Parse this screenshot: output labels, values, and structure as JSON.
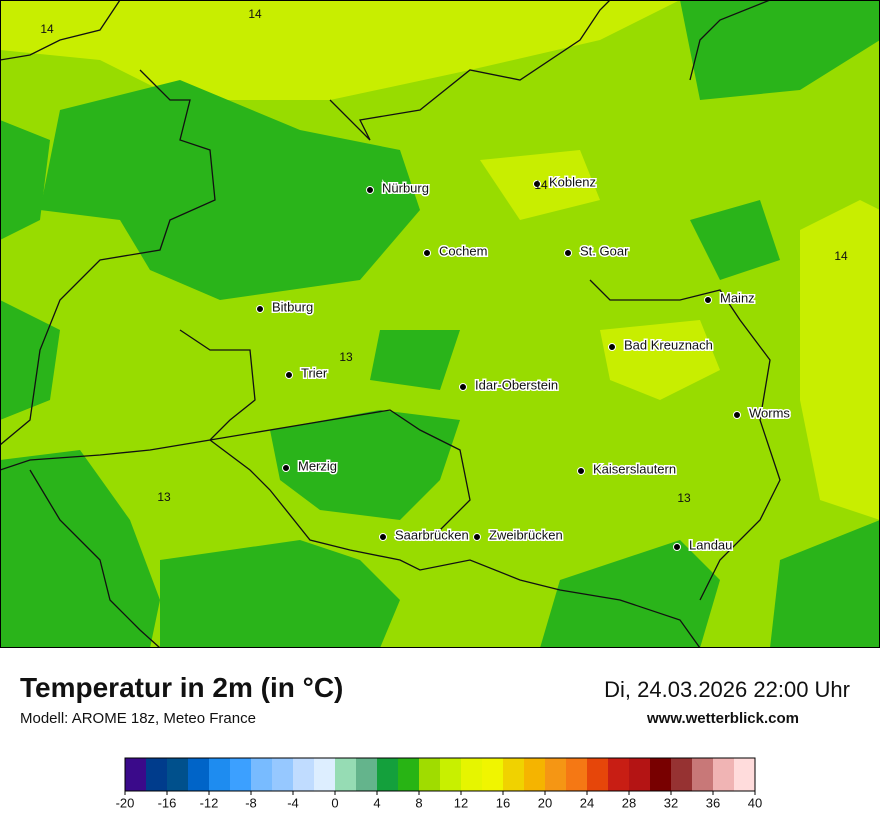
{
  "map": {
    "contour_labels": [
      "14",
      "14",
      "14",
      "14",
      "13",
      "13",
      "13"
    ],
    "cities": [
      "Nürburg",
      "Koblenz",
      "Cochem",
      "St. Goar",
      "Mainz",
      "Bitburg",
      "Bad Kreuznach",
      "Trier",
      "Idar-Oberstein",
      "Worms",
      "Merzig",
      "Kaiserslautern",
      "Saarbrücken",
      "Zweibrücken",
      "Landau"
    ]
  },
  "footer": {
    "title": "Temperatur in 2m (in °C)",
    "model": "Modell: AROME 18z, Meteo France",
    "datetime": "Di, 24.03.2026 22:00 Uhr",
    "site": "www.wetterblick.com"
  },
  "legend": {
    "colors": [
      "#3a0a8a",
      "#003c8c",
      "#00508c",
      "#0064c8",
      "#1e8cf0",
      "#3ca0ff",
      "#78bbff",
      "#96c8ff",
      "#c0dcff",
      "#ddeeff",
      "#96dcb4",
      "#64b48c",
      "#14a03c",
      "#28b414",
      "#a0dc00",
      "#c8f000",
      "#e6f500",
      "#f0f500",
      "#f0d200",
      "#f5b400",
      "#f59614",
      "#f57814",
      "#e6460a",
      "#c81e14",
      "#b41414",
      "#780000",
      "#963232",
      "#c87878",
      "#f0b4b4",
      "#ffdcdc"
    ],
    "ticks": [
      -20,
      -16,
      -12,
      -8,
      -4,
      0,
      4,
      8,
      12,
      16,
      20,
      24,
      28,
      32,
      36,
      40
    ]
  }
}
